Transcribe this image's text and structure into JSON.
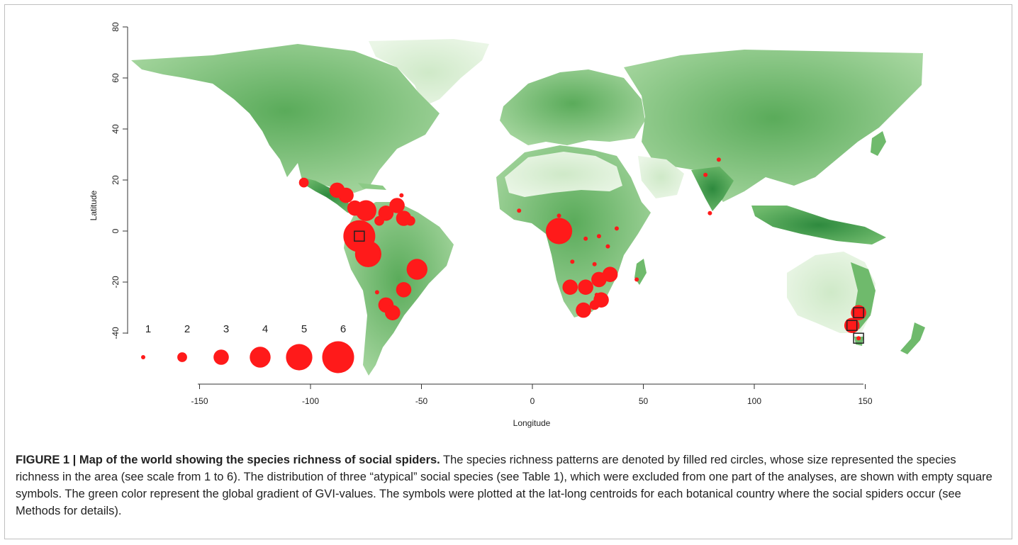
{
  "figure": {
    "axes": {
      "xlabel": "Longitude",
      "ylabel": "Latitude",
      "xticks": [
        -150,
        -100,
        -50,
        0,
        50,
        100,
        150
      ],
      "yticks": [
        80,
        60,
        40,
        20,
        0,
        -20,
        -40
      ],
      "xlim": [
        -180,
        180
      ],
      "ylim": [
        -55,
        80
      ]
    },
    "legend": {
      "labels": [
        "1",
        "2",
        "3",
        "4",
        "5",
        "6"
      ]
    },
    "colors": {
      "land_light": "#e3f2de",
      "land_mid": "#8cca86",
      "land_dark": "#2e8a3e",
      "marker": "#ff1a1a",
      "square": "#222222"
    }
  },
  "chart_data": {
    "type": "scatter",
    "encoding": "marker size = species richness (1 to 6)",
    "points": [
      {
        "lon": -103,
        "lat": 19,
        "richness": 2
      },
      {
        "lon": -88,
        "lat": 16,
        "richness": 3
      },
      {
        "lon": -84,
        "lat": 14,
        "richness": 3
      },
      {
        "lon": -80,
        "lat": 9,
        "richness": 3
      },
      {
        "lon": -75,
        "lat": 8,
        "richness": 4
      },
      {
        "lon": -78,
        "lat": -2,
        "richness": 6
      },
      {
        "lon": -74,
        "lat": -9,
        "richness": 5
      },
      {
        "lon": -66,
        "lat": 7,
        "richness": 3
      },
      {
        "lon": -61,
        "lat": 10,
        "richness": 3
      },
      {
        "lon": -59,
        "lat": 14,
        "richness": 1
      },
      {
        "lon": -58,
        "lat": 5,
        "richness": 3
      },
      {
        "lon": -55,
        "lat": 4,
        "richness": 2
      },
      {
        "lon": -69,
        "lat": 4,
        "richness": 2
      },
      {
        "lon": -52,
        "lat": -15,
        "richness": 4
      },
      {
        "lon": -58,
        "lat": -23,
        "richness": 3
      },
      {
        "lon": -70,
        "lat": -24,
        "richness": 1
      },
      {
        "lon": -66,
        "lat": -29,
        "richness": 3
      },
      {
        "lon": -63,
        "lat": -32,
        "richness": 3
      },
      {
        "lon": -6,
        "lat": 8,
        "richness": 1
      },
      {
        "lon": 12,
        "lat": 6,
        "richness": 1
      },
      {
        "lon": 12,
        "lat": 0,
        "richness": 5
      },
      {
        "lon": 24,
        "lat": -3,
        "richness": 1
      },
      {
        "lon": 30,
        "lat": -2,
        "richness": 1
      },
      {
        "lon": 34,
        "lat": -6,
        "richness": 1
      },
      {
        "lon": 38,
        "lat": 1,
        "richness": 1
      },
      {
        "lon": 18,
        "lat": -12,
        "richness": 1
      },
      {
        "lon": 28,
        "lat": -13,
        "richness": 1
      },
      {
        "lon": 35,
        "lat": -17,
        "richness": 3
      },
      {
        "lon": 30,
        "lat": -19,
        "richness": 3
      },
      {
        "lon": 17,
        "lat": -22,
        "richness": 3
      },
      {
        "lon": 24,
        "lat": -22,
        "richness": 3
      },
      {
        "lon": 29,
        "lat": -25,
        "richness": 1
      },
      {
        "lon": 31,
        "lat": -27,
        "richness": 3
      },
      {
        "lon": 28,
        "lat": -29,
        "richness": 2
      },
      {
        "lon": 23,
        "lat": -31,
        "richness": 3
      },
      {
        "lon": 47,
        "lat": -19,
        "richness": 1
      },
      {
        "lon": 78,
        "lat": 22,
        "richness": 1
      },
      {
        "lon": 84,
        "lat": 28,
        "richness": 1
      },
      {
        "lon": 80,
        "lat": 7,
        "richness": 1
      },
      {
        "lon": 147,
        "lat": -32,
        "richness": 3
      },
      {
        "lon": 144,
        "lat": -37,
        "richness": 3
      },
      {
        "lon": 147,
        "lat": -42,
        "richness": 1
      }
    ],
    "atypical_squares": [
      {
        "lon": -78,
        "lat": -2
      },
      {
        "lon": 147,
        "lat": -32
      },
      {
        "lon": 144,
        "lat": -37
      },
      {
        "lon": 147,
        "lat": -42
      }
    ]
  },
  "caption": {
    "lead": "FIGURE 1 | Map of the world showing the species richness of social spiders.",
    "text": " The species richness patterns are denoted by filled red circles, whose size represented the species richness in the area (see scale from 1 to 6). The distribution of three “atypical” social species (see Table 1), which were excluded from one part of the analyses, are shown with empty square symbols. The green color represent the global gradient of GVI-values. The symbols were plotted at the lat-long centroids for each botanical country where the social spiders occur (see Methods for details)."
  }
}
